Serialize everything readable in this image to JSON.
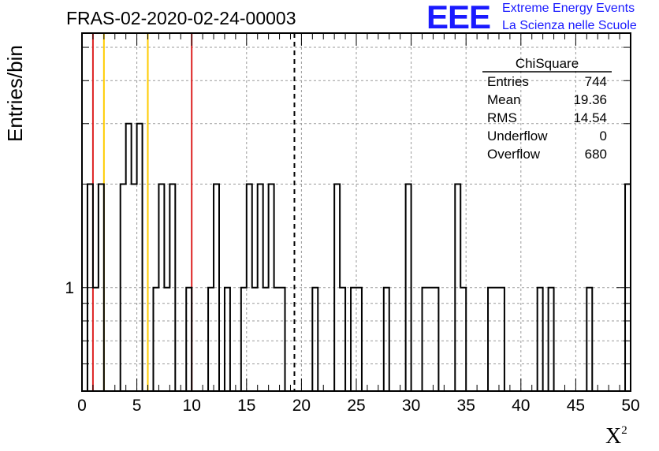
{
  "chart_data": {
    "type": "histogram",
    "title": "FRAS-02-2020-02-24-00003",
    "xlabel": "X",
    "xlabel_superscript": "2",
    "ylabel": "Entries/bin",
    "xlim": [
      0,
      50
    ],
    "ylim": [
      0.5,
      5.5
    ],
    "y_log_scale": true,
    "grid": true,
    "bin_width": 0.5,
    "x_ticks": [
      "0",
      "5",
      "10",
      "15",
      "20",
      "25",
      "30",
      "35",
      "40",
      "45",
      "50"
    ],
    "y_tick_labels": [
      "1"
    ],
    "bins": [
      {
        "x": 0.5,
        "count": 2
      },
      {
        "x": 1.0,
        "count": 1
      },
      {
        "x": 1.5,
        "count": 2
      },
      {
        "x": 3.5,
        "count": 2
      },
      {
        "x": 4.0,
        "count": 3
      },
      {
        "x": 4.5,
        "count": 2
      },
      {
        "x": 5.0,
        "count": 3
      },
      {
        "x": 6.5,
        "count": 1
      },
      {
        "x": 7.0,
        "count": 2
      },
      {
        "x": 7.5,
        "count": 1
      },
      {
        "x": 8.0,
        "count": 2
      },
      {
        "x": 9.5,
        "count": 1
      },
      {
        "x": 11.5,
        "count": 1
      },
      {
        "x": 12.0,
        "count": 2
      },
      {
        "x": 13.0,
        "count": 1
      },
      {
        "x": 14.5,
        "count": 1
      },
      {
        "x": 15.0,
        "count": 2
      },
      {
        "x": 15.5,
        "count": 1
      },
      {
        "x": 16.0,
        "count": 2
      },
      {
        "x": 16.5,
        "count": 1
      },
      {
        "x": 17.0,
        "count": 2
      },
      {
        "x": 17.5,
        "count": 1
      },
      {
        "x": 18.0,
        "count": 1
      },
      {
        "x": 21.0,
        "count": 1
      },
      {
        "x": 23.0,
        "count": 2
      },
      {
        "x": 23.5,
        "count": 1
      },
      {
        "x": 24.5,
        "count": 1
      },
      {
        "x": 25.0,
        "count": 1
      },
      {
        "x": 27.5,
        "count": 1
      },
      {
        "x": 29.5,
        "count": 2
      },
      {
        "x": 31.0,
        "count": 1
      },
      {
        "x": 31.5,
        "count": 1
      },
      {
        "x": 32.0,
        "count": 1
      },
      {
        "x": 34.0,
        "count": 2
      },
      {
        "x": 34.5,
        "count": 1
      },
      {
        "x": 37.0,
        "count": 1
      },
      {
        "x": 37.5,
        "count": 1
      },
      {
        "x": 38.0,
        "count": 1
      },
      {
        "x": 41.5,
        "count": 1
      },
      {
        "x": 42.5,
        "count": 1
      },
      {
        "x": 46.0,
        "count": 1
      },
      {
        "x": 49.5,
        "count": 2
      }
    ],
    "vertical_lines": [
      {
        "x": 1.0,
        "color": "#dd2222",
        "style": "solid"
      },
      {
        "x": 2.0,
        "color": "#ffcc00",
        "style": "solid"
      },
      {
        "x": 6.0,
        "color": "#ffcc00",
        "style": "solid"
      },
      {
        "x": 10.0,
        "color": "#dd2222",
        "style": "solid"
      },
      {
        "x": 19.36,
        "color": "#000000",
        "style": "dashed"
      }
    ],
    "stats_box": {
      "name": "ChiSquare",
      "rows": [
        {
          "label": "Entries",
          "value": "744"
        },
        {
          "label": "Mean",
          "value": "19.36"
        },
        {
          "label": "RMS",
          "value": "14.54"
        },
        {
          "label": "Underflow",
          "value": "0"
        },
        {
          "label": "Overflow",
          "value": "680"
        }
      ]
    }
  },
  "logo": {
    "mark": "EEE",
    "line1": "Extreme Energy Events",
    "line2": "La Scienza nelle Scuole",
    "color": "#1a1aff"
  }
}
